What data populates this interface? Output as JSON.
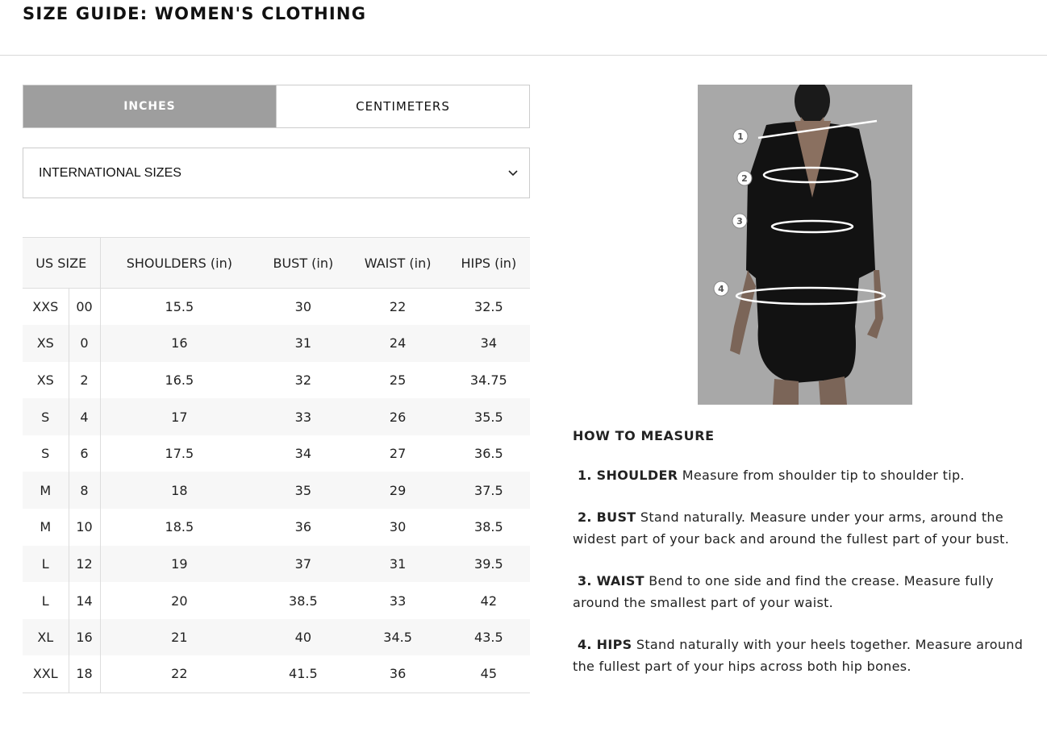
{
  "title": "SIZE GUIDE: WOMEN'S CLOTHING",
  "unit_tabs": [
    {
      "label": "INCHES",
      "active": true
    },
    {
      "label": "CENTIMETERS",
      "active": false
    }
  ],
  "size_select": {
    "value": "INTERNATIONAL SIZES",
    "icon": "chevron-down-icon"
  },
  "table": {
    "headers": [
      "US SIZE",
      "SHOULDERS (in)",
      "BUST (in)",
      "WAIST (in)",
      "HIPS (in)"
    ],
    "rows": [
      [
        "XXS",
        "00",
        "15.5",
        "30",
        "22",
        "32.5"
      ],
      [
        "XS",
        "0",
        "16",
        "31",
        "24",
        "34"
      ],
      [
        "XS",
        "2",
        "16.5",
        "32",
        "25",
        "34.75"
      ],
      [
        "S",
        "4",
        "17",
        "33",
        "26",
        "35.5"
      ],
      [
        "S",
        "6",
        "17.5",
        "34",
        "27",
        "36.5"
      ],
      [
        "M",
        "8",
        "18",
        "35",
        "29",
        "37.5"
      ],
      [
        "M",
        "10",
        "18.5",
        "36",
        "30",
        "38.5"
      ],
      [
        "L",
        "12",
        "19",
        "37",
        "31",
        "39.5"
      ],
      [
        "L",
        "14",
        "20",
        "38.5",
        "33",
        "42"
      ],
      [
        "XL",
        "16",
        "21",
        "40",
        "34.5",
        "43.5"
      ],
      [
        "XXL",
        "18",
        "22",
        "41.5",
        "36",
        "45"
      ]
    ]
  },
  "image_markers": [
    "1",
    "2",
    "3",
    "4"
  ],
  "how_to": {
    "heading": "HOW TO MEASURE",
    "items": [
      {
        "label": "1. SHOULDER",
        "text": " Measure from shoulder tip to shoulder tip."
      },
      {
        "label": "2. BUST",
        "text": "  Stand naturally. Measure under your arms, around the widest part of your back and around the fullest part of your bust."
      },
      {
        "label": "3. WAIST",
        "text": " Bend to one side and find the crease. Measure fully around the smallest part of your waist."
      },
      {
        "label": "4. HIPS",
        "text": " Stand naturally with your heels together. Measure around the fullest part of your hips across both hip bones."
      }
    ]
  }
}
